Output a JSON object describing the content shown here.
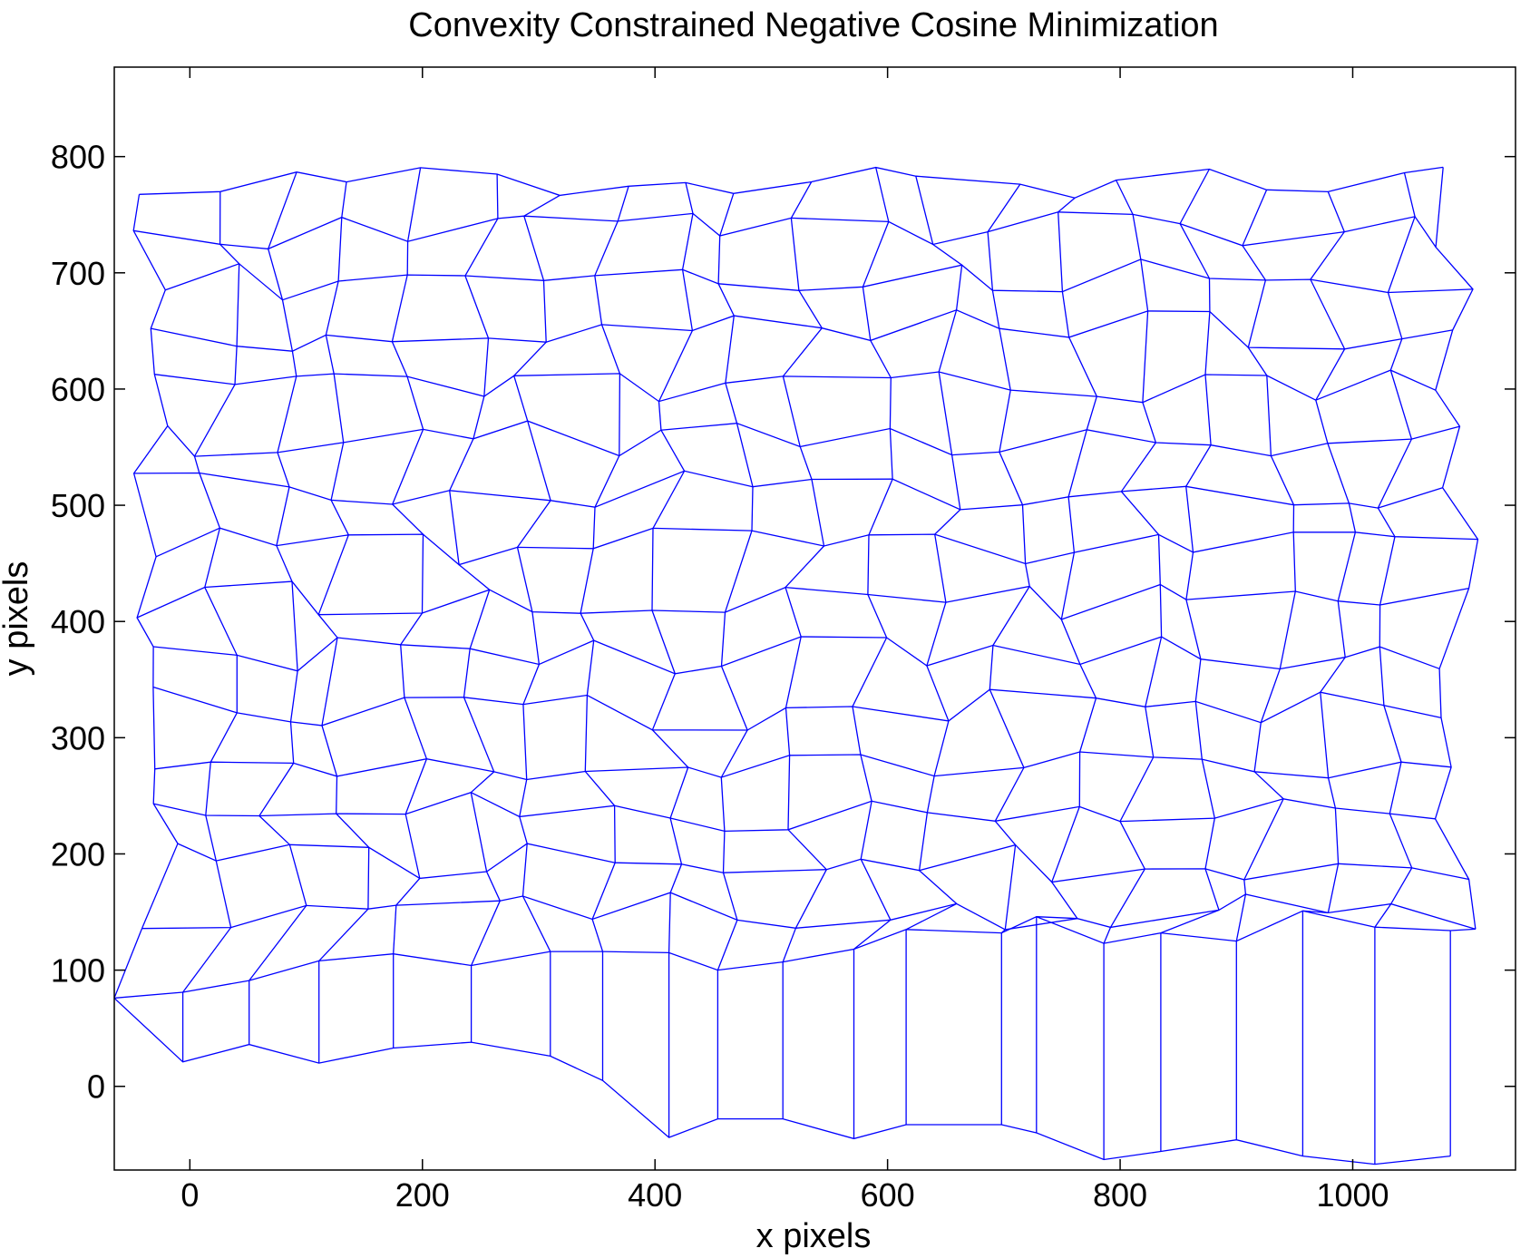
{
  "chart_data": {
    "type": "line",
    "title": "Convexity Constrained Negative Cosine Minimization",
    "xlabel": "x pixels",
    "ylabel": "y pixels",
    "xlim": [
      -65,
      1140
    ],
    "ylim": [
      -72,
      877
    ],
    "xticks": [
      0,
      200,
      400,
      600,
      800,
      1000
    ],
    "yticks": [
      0,
      100,
      200,
      300,
      400,
      500,
      600,
      700,
      800
    ],
    "grid": false,
    "line_color": "#0000ff",
    "series": [
      {
        "x": [
          -65,
          -6,
          51,
          111,
          175,
          242,
          310,
          355,
          412,
          454,
          510,
          571,
          616,
          698,
          728,
          786,
          835,
          900,
          957,
          1019,
          1084
        ],
        "y": [
          76,
          21,
          36,
          20,
          33,
          38,
          26,
          5,
          -44,
          -28,
          -28,
          -45,
          -33,
          -33,
          -40,
          -63,
          -56,
          -46,
          -60,
          -67,
          -60
        ]
      },
      {
        "x": [
          -65,
          -6,
          51,
          111,
          175,
          242,
          310,
          355,
          412,
          454,
          510,
          571,
          616,
          698,
          728,
          786,
          835,
          900,
          957,
          1019,
          1084
        ],
        "y": [
          76,
          81,
          91,
          108,
          114,
          104,
          116,
          116,
          115,
          100,
          107,
          118,
          135,
          132,
          146,
          123,
          132,
          125,
          151,
          137,
          134
        ]
      }
    ]
  }
}
